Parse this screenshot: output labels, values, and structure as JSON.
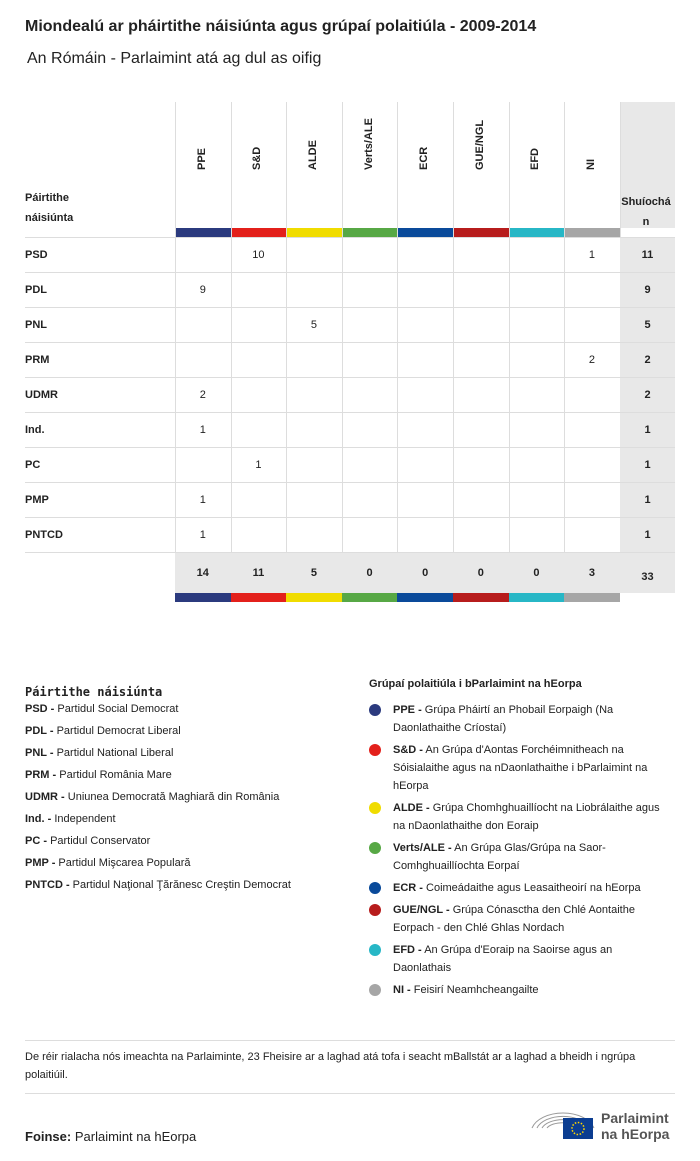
{
  "title": "Miondealú ar pháirtithe náisiúnta agus grúpaí polaitiúla - 2009-2014",
  "subtitle": "An Rómáin - Parlaimint atá ag dul as oifig",
  "table": {
    "corner": "Páirtithe náisiúnta",
    "total_header": "Shuíochán",
    "columns": [
      {
        "name": "PPE",
        "color": "#2b3a7e"
      },
      {
        "name": "S&D",
        "color": "#e3201b"
      },
      {
        "name": "ALDE",
        "color": "#f0dc00"
      },
      {
        "name": "Verts/ALE",
        "color": "#57a845"
      },
      {
        "name": "ECR",
        "color": "#0a4a9a"
      },
      {
        "name": "GUE/NGL",
        "color": "#b71c1c"
      },
      {
        "name": "EFD",
        "color": "#27b7c6"
      },
      {
        "name": "NI",
        "color": "#a6a6a6"
      }
    ],
    "rows": [
      {
        "party": "PSD",
        "cells": [
          null,
          10,
          null,
          null,
          null,
          null,
          null,
          1
        ],
        "total": 11
      },
      {
        "party": "PDL",
        "cells": [
          9,
          null,
          null,
          null,
          null,
          null,
          null,
          null
        ],
        "total": 9
      },
      {
        "party": "PNL",
        "cells": [
          null,
          null,
          5,
          null,
          null,
          null,
          null,
          null
        ],
        "total": 5
      },
      {
        "party": "PRM",
        "cells": [
          null,
          null,
          null,
          null,
          null,
          null,
          null,
          2
        ],
        "total": 2
      },
      {
        "party": "UDMR",
        "cells": [
          2,
          null,
          null,
          null,
          null,
          null,
          null,
          null
        ],
        "total": 2
      },
      {
        "party": "Ind.",
        "cells": [
          1,
          null,
          null,
          null,
          null,
          null,
          null,
          null
        ],
        "total": 1
      },
      {
        "party": "PC",
        "cells": [
          null,
          1,
          null,
          null,
          null,
          null,
          null,
          null
        ],
        "total": 1
      },
      {
        "party": "PMP",
        "cells": [
          1,
          null,
          null,
          null,
          null,
          null,
          null,
          null
        ],
        "total": 1
      },
      {
        "party": "PNTCD",
        "cells": [
          1,
          null,
          null,
          null,
          null,
          null,
          null,
          null
        ],
        "total": 1
      }
    ],
    "totals": [
      14,
      11,
      5,
      0,
      0,
      0,
      0,
      3
    ],
    "grand_total": 33
  },
  "party_legend": {
    "title": "Páirtithe náisiúnta",
    "items": [
      {
        "key": "PSD -",
        "text": "Partidul Social Democrat"
      },
      {
        "key": "PDL -",
        "text": "Partidul Democrat Liberal"
      },
      {
        "key": "PNL -",
        "text": "Partidul National Liberal"
      },
      {
        "key": "PRM -",
        "text": "Partidul România Mare"
      },
      {
        "key": "UDMR -",
        "text": "Uniunea Democrată Maghiară din România"
      },
      {
        "key": "Ind. -",
        "text": "Independent"
      },
      {
        "key": "PC -",
        "text": "Partidul Conservator"
      },
      {
        "key": "PMP -",
        "text": "Partidul Mişcarea Populară"
      },
      {
        "key": "PNTCD -",
        "text": "Partidul Naţional Ţărănesc Creştin Democrat"
      }
    ]
  },
  "group_legend": {
    "title": "Grúpaí polaitiúla i bParlaimint na hEorpa",
    "items": [
      {
        "key": "PPE -",
        "text": "Grúpa Pháirtí an Phobail Eorpaigh (Na Daonlathaithe Críostaí)"
      },
      {
        "key": "S&D -",
        "text": "An Grúpa d'Aontas Forchéimnitheach na Sóisialaithe agus na nDaonlathaithe i bParlaimint na hEorpa"
      },
      {
        "key": "ALDE -",
        "text": "Grúpa Chomhghuaillíocht na Liobrálaithe agus na nDaonlathaithe don Eoraip"
      },
      {
        "key": "Verts/ALE -",
        "text": "An Grúpa Glas/Grúpa na Saor-Comhghuaillíochta Eorpaí"
      },
      {
        "key": "ECR -",
        "text": "Coimeádaithe agus Leasaitheoirí na hEorpa"
      },
      {
        "key": "GUE/NGL -",
        "text": "Grúpa Cónasctha den Chlé Aontaithe Eorpach - den Chlé Ghlas Nordach"
      },
      {
        "key": "EFD -",
        "text": "An Grúpa d'Eoraip na Saoirse agus an Daonlathais"
      },
      {
        "key": "NI -",
        "text": "Feisirí Neamhcheangailte"
      }
    ]
  },
  "note": "De réir rialacha nós imeachta na Parlaiminte, 23 Fheisire ar a laghad atá tofa i seacht mBallstát ar a laghad a bheidh i ngrúpa polaitiúil.",
  "source": {
    "label": "Foinse:",
    "text": "Parlaimint na hEorpa"
  },
  "logo": [
    "Parlaimint",
    "na hEorpa"
  ]
}
